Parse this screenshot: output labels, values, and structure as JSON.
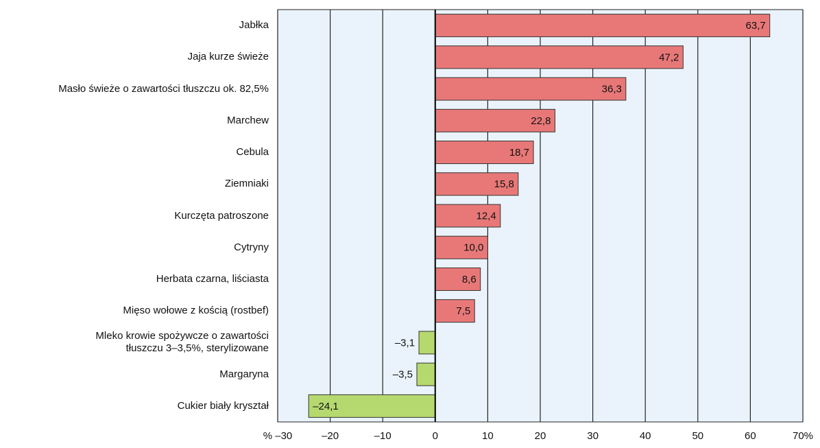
{
  "chart_data": {
    "type": "barh",
    "categories": [
      "Jabłka",
      "Jaja kurze świeże",
      "Masło świeże o zawartości tłuszczu ok. 82,5%",
      "Marchew",
      "Cebula",
      "Ziemniaki",
      "Kurczęta patroszone",
      "Cytryny",
      "Herbata czarna, liściasta",
      "Mięso wołowe z kością (rostbef)",
      "Mleko krowie spożywcze o zawartości\ntłuszczu 3–3,5%, sterylizowane",
      "Margaryna",
      "Cukier biały kryształ"
    ],
    "values": [
      63.7,
      47.2,
      36.3,
      22.8,
      18.7,
      15.8,
      12.4,
      10.0,
      8.6,
      7.5,
      -3.1,
      -3.5,
      -24.1
    ],
    "value_labels": [
      "63,7",
      "47,2",
      "36,3",
      "22,8",
      "18,7",
      "15,8",
      "12,4",
      "10,0",
      "8,6",
      "7,5",
      "–3,1",
      "–3,5",
      "–24,1"
    ],
    "color_positive": "#e87878",
    "color_negative": "#b5d96f",
    "xlim": [
      -30,
      70
    ],
    "xticks": [
      {
        "value": -30,
        "label": "% –30"
      },
      {
        "value": -20,
        "label": "–20"
      },
      {
        "value": -10,
        "label": "–10"
      },
      0,
      10,
      20,
      30,
      40,
      50,
      60,
      {
        "value": 70,
        "label": "70%"
      }
    ],
    "grid": true
  }
}
